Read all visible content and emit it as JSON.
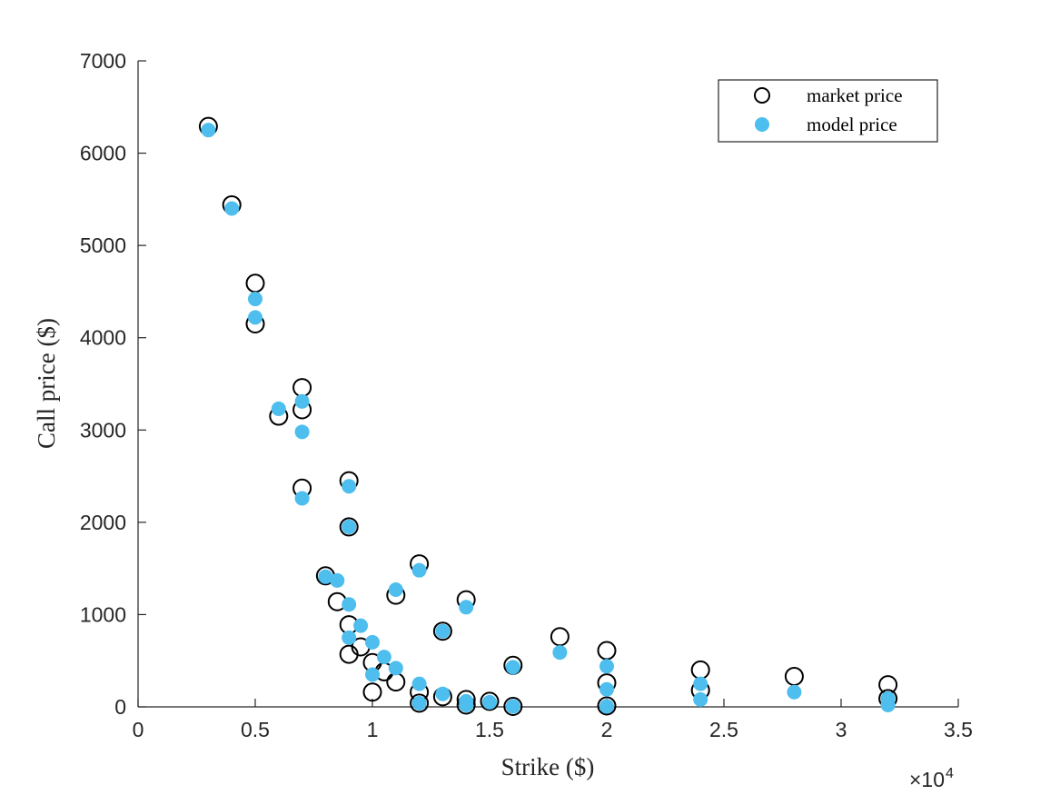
{
  "chart_data": {
    "type": "scatter",
    "title": "",
    "xlabel": "Strike ($)",
    "ylabel": "Call price ($)",
    "x_exponent_label": "×10",
    "x_exponent_power": "4",
    "xlim": [
      0,
      35000
    ],
    "ylim": [
      0,
      7000
    ],
    "x_ticks": [
      0,
      5000,
      10000,
      15000,
      20000,
      25000,
      30000,
      35000
    ],
    "x_tick_labels": [
      "0",
      "0.5",
      "1",
      "1.5",
      "2",
      "2.5",
      "3",
      "3.5"
    ],
    "y_ticks": [
      0,
      1000,
      2000,
      3000,
      4000,
      5000,
      6000,
      7000
    ],
    "y_tick_labels": [
      "0",
      "1000",
      "2000",
      "3000",
      "4000",
      "5000",
      "6000",
      "7000"
    ],
    "grid": false,
    "legend_position": "top-right",
    "colors": {
      "market": "#000000",
      "model": "#4dbeee",
      "axis": "#262626"
    },
    "series": [
      {
        "name": "market price",
        "marker": "open-circle",
        "points": [
          [
            3000,
            6290
          ],
          [
            4000,
            5440
          ],
          [
            5000,
            4590
          ],
          [
            5000,
            4150
          ],
          [
            6000,
            3150
          ],
          [
            7000,
            3460
          ],
          [
            7000,
            3220
          ],
          [
            7000,
            2370
          ],
          [
            8000,
            1420
          ],
          [
            8500,
            1140
          ],
          [
            9000,
            2450
          ],
          [
            9000,
            1950
          ],
          [
            9000,
            890
          ],
          [
            9000,
            570
          ],
          [
            9500,
            650
          ],
          [
            10000,
            480
          ],
          [
            10000,
            160
          ],
          [
            10500,
            380
          ],
          [
            11000,
            1210
          ],
          [
            11000,
            270
          ],
          [
            12000,
            1550
          ],
          [
            12000,
            160
          ],
          [
            12000,
            40
          ],
          [
            13000,
            820
          ],
          [
            13000,
            110
          ],
          [
            14000,
            1160
          ],
          [
            14000,
            80
          ],
          [
            14000,
            20
          ],
          [
            15000,
            60
          ],
          [
            16000,
            450
          ],
          [
            16000,
            5
          ],
          [
            18000,
            760
          ],
          [
            20000,
            610
          ],
          [
            20000,
            260
          ],
          [
            20000,
            10
          ],
          [
            24000,
            400
          ],
          [
            24000,
            180
          ],
          [
            28000,
            330
          ],
          [
            32000,
            240
          ],
          [
            32000,
            90
          ]
        ]
      },
      {
        "name": "model price",
        "marker": "filled-circle",
        "points": [
          [
            3000,
            6250
          ],
          [
            4000,
            5400
          ],
          [
            5000,
            4420
          ],
          [
            5000,
            4220
          ],
          [
            6000,
            3230
          ],
          [
            7000,
            3310
          ],
          [
            7000,
            2980
          ],
          [
            7000,
            2260
          ],
          [
            8000,
            1410
          ],
          [
            8500,
            1370
          ],
          [
            9000,
            2390
          ],
          [
            9000,
            1950
          ],
          [
            9000,
            1110
          ],
          [
            9000,
            750
          ],
          [
            9500,
            880
          ],
          [
            10000,
            700
          ],
          [
            10000,
            350
          ],
          [
            10500,
            540
          ],
          [
            11000,
            1270
          ],
          [
            11000,
            420
          ],
          [
            12000,
            1480
          ],
          [
            12000,
            250
          ],
          [
            12000,
            40
          ],
          [
            13000,
            820
          ],
          [
            13000,
            140
          ],
          [
            14000,
            1080
          ],
          [
            14000,
            60
          ],
          [
            14000,
            20
          ],
          [
            15000,
            50
          ],
          [
            16000,
            430
          ],
          [
            16000,
            5
          ],
          [
            18000,
            590
          ],
          [
            20000,
            440
          ],
          [
            20000,
            190
          ],
          [
            20000,
            5
          ],
          [
            24000,
            250
          ],
          [
            24000,
            80
          ],
          [
            28000,
            160
          ],
          [
            32000,
            90
          ],
          [
            32000,
            20
          ]
        ]
      }
    ]
  }
}
